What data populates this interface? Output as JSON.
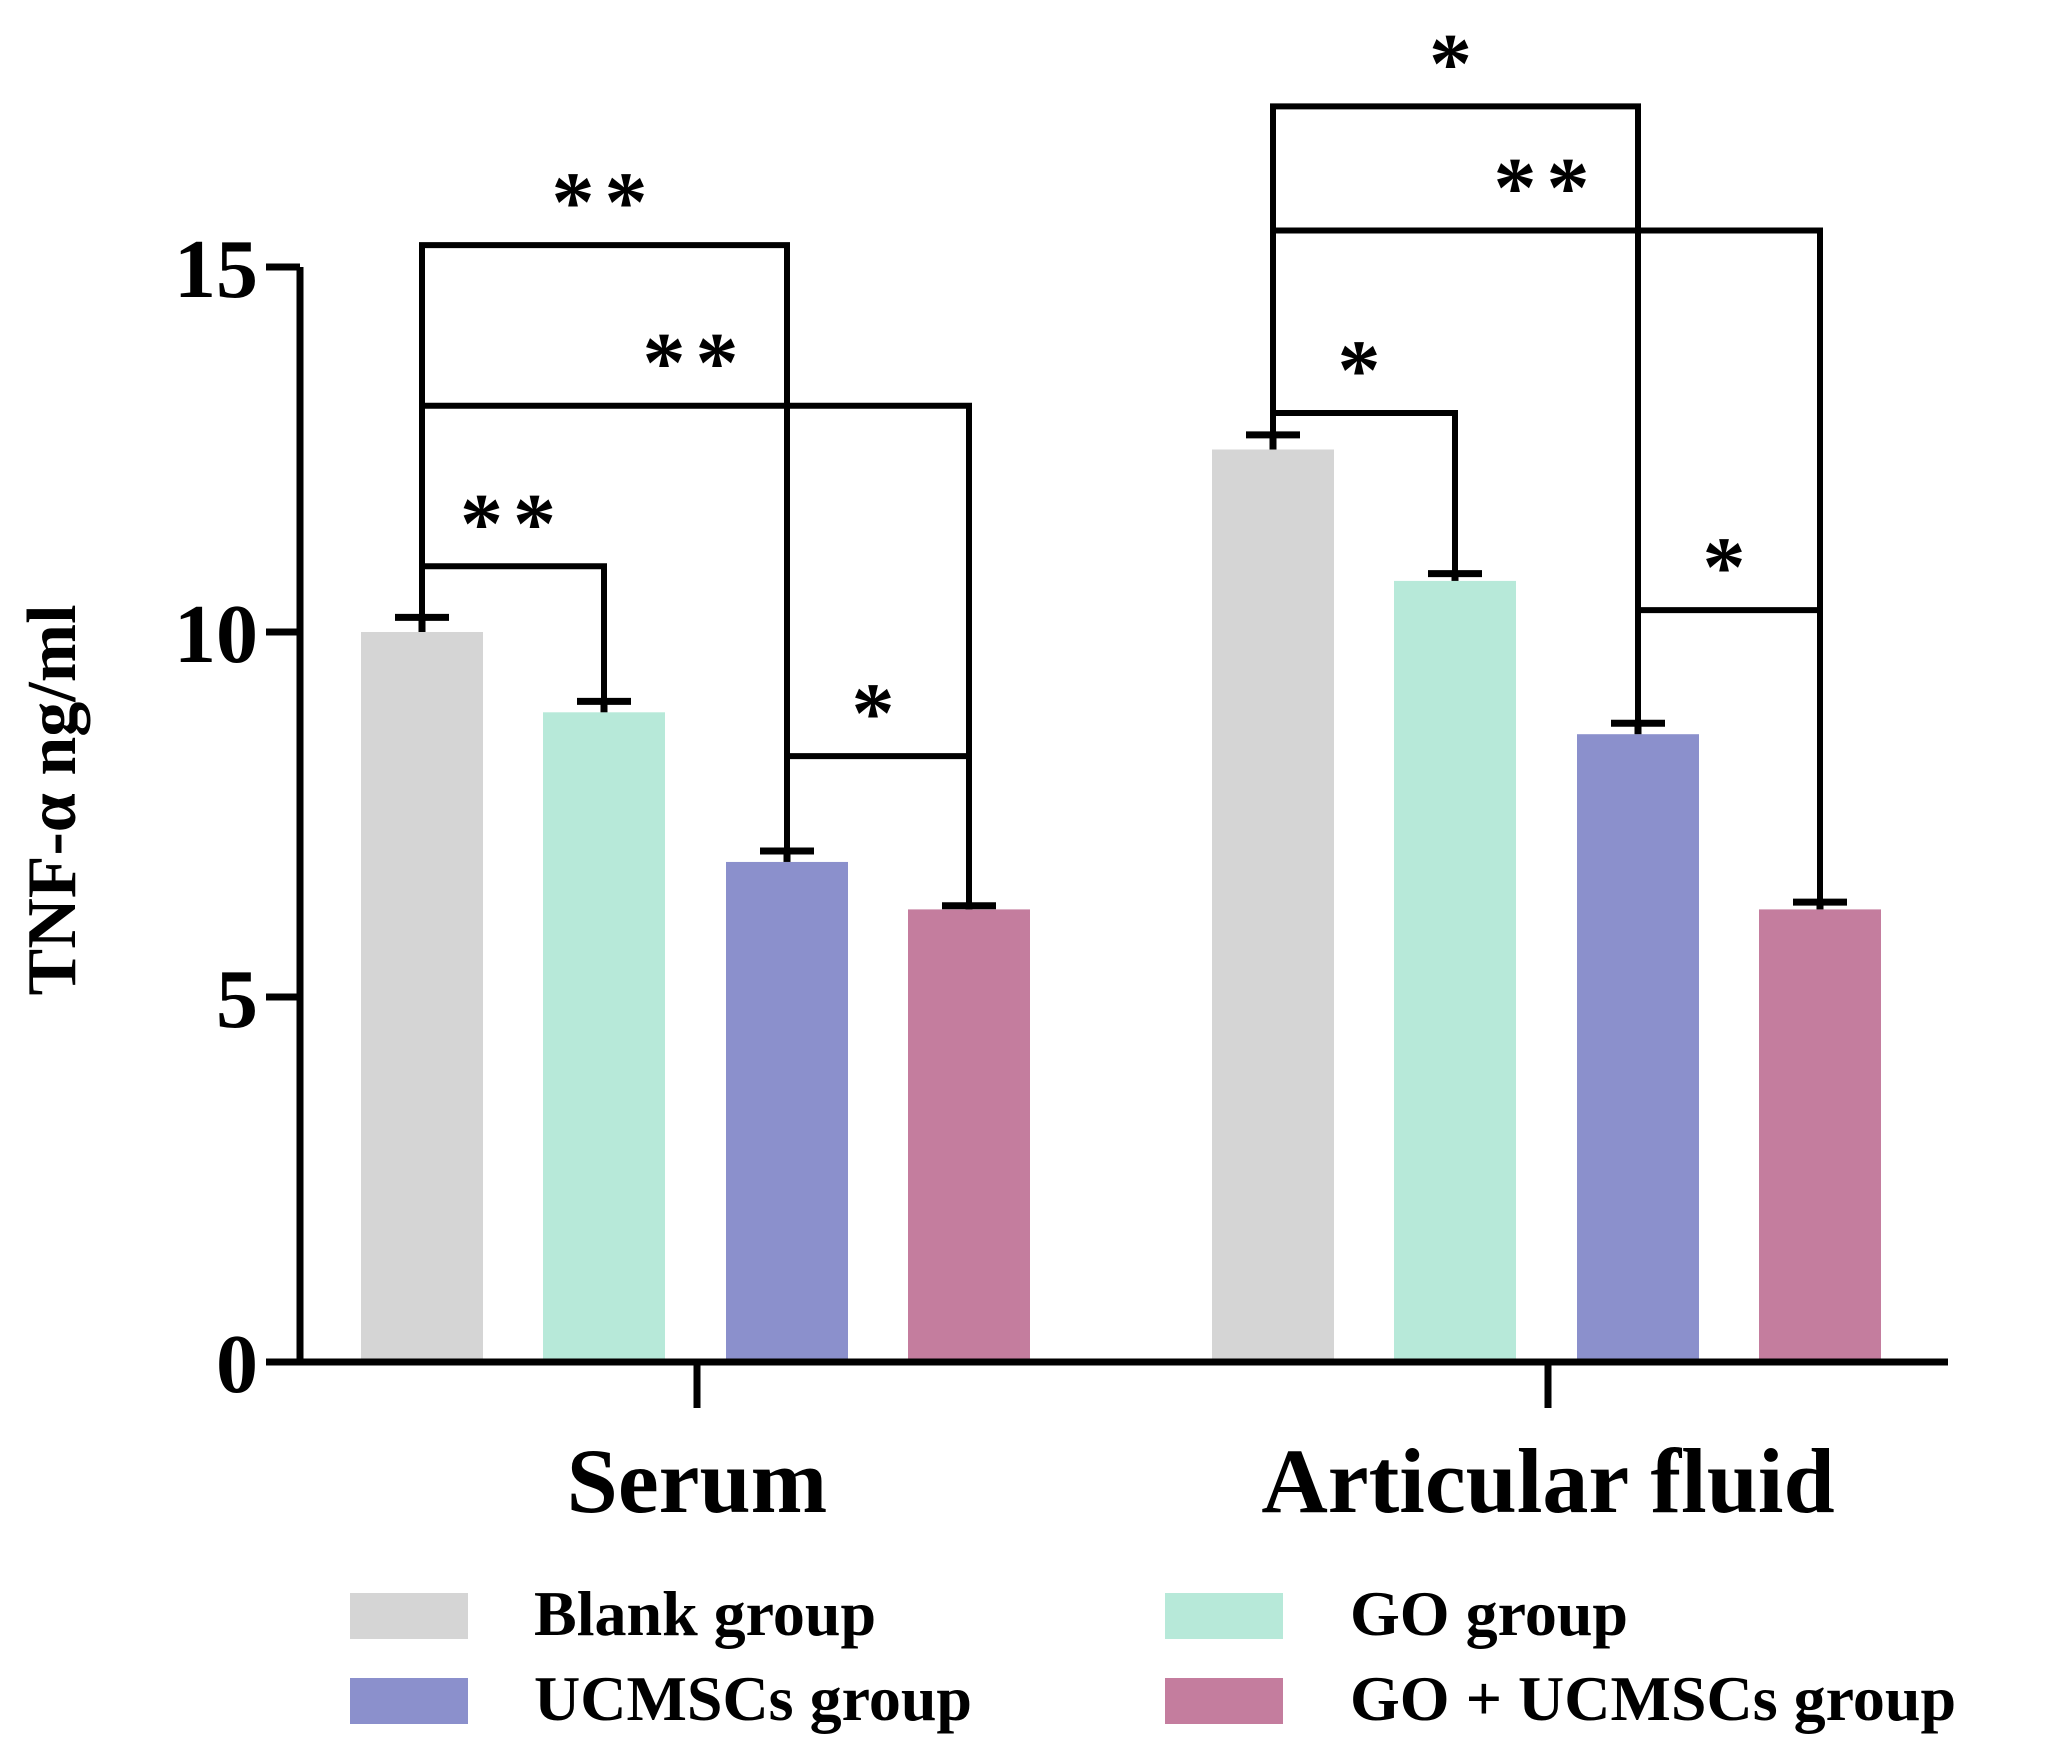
{
  "chart_data": {
    "type": "bar",
    "title": "",
    "ylabel": "TNF-α ng/ml",
    "xlabel": "",
    "ylim": [
      0,
      15
    ],
    "yticks": [
      0,
      5,
      10,
      15
    ],
    "categories": [
      "Serum",
      "Articular fluid"
    ],
    "series": [
      {
        "name": "Blank group",
        "color": "#d5d5d5",
        "values": [
          10.0,
          12.5
        ],
        "errors": [
          0.2,
          0.2
        ]
      },
      {
        "name": "GO group",
        "color": "#b7e9d9",
        "values": [
          8.9,
          10.7
        ],
        "errors": [
          0.15,
          0.1
        ]
      },
      {
        "name": "UCMSCs group",
        "color": "#8b90cc",
        "values": [
          6.85,
          8.6
        ],
        "errors": [
          0.15,
          0.15
        ]
      },
      {
        "name": "GO + UCMSCs group",
        "color": "#c47d9e",
        "values": [
          6.2,
          6.2
        ],
        "errors": [
          0.05,
          0.1
        ]
      }
    ],
    "significance": [
      {
        "category": 0,
        "from": 0,
        "to": 1,
        "label": "**",
        "level": 10.9
      },
      {
        "category": 0,
        "from": 0,
        "to": 3,
        "label": "**",
        "level": 13.1
      },
      {
        "category": 0,
        "from": 0,
        "to": 2,
        "label": "**",
        "level": 15.3
      },
      {
        "category": 0,
        "from": 2,
        "to": 3,
        "label": "*",
        "level": 8.3
      },
      {
        "category": 1,
        "from": 0,
        "to": 1,
        "label": "*",
        "level": 13.0
      },
      {
        "category": 1,
        "from": 0,
        "to": 3,
        "label": "**",
        "level": 15.5
      },
      {
        "category": 1,
        "from": 0,
        "to": 2,
        "label": "*",
        "level": 17.2
      },
      {
        "category": 1,
        "from": 2,
        "to": 3,
        "label": "*",
        "level": 10.3
      }
    ],
    "legend_position": "bottom"
  }
}
